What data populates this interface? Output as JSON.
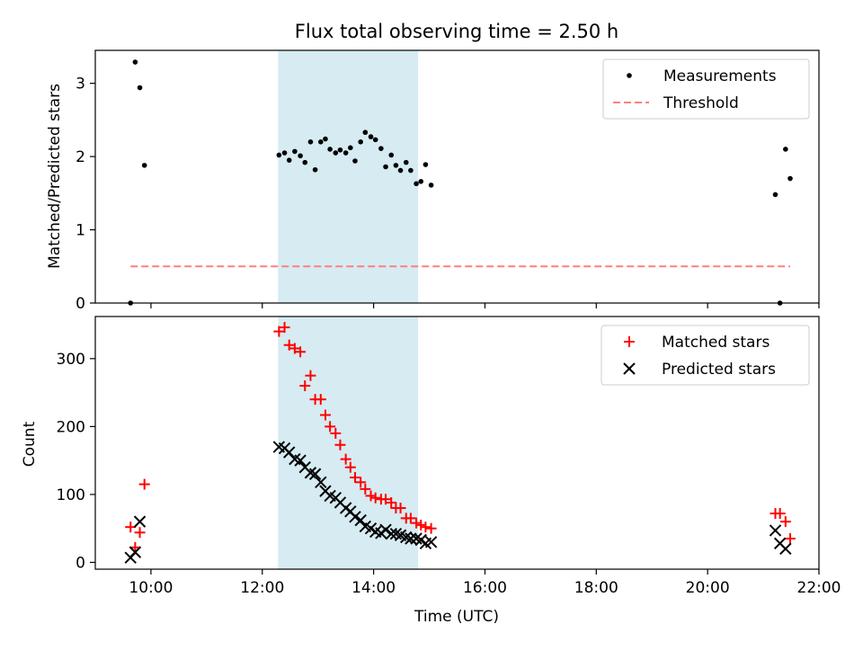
{
  "chart_data": [
    {
      "type": "scatter",
      "title": "Flux total observing time = 2.50 h",
      "xlabel": "",
      "ylabel": "Matched/Predicted stars",
      "xlim": [
        "09:00",
        "22:00"
      ],
      "ylim": [
        0,
        3.45
      ],
      "yticks": [
        "0",
        "1",
        "2",
        "3"
      ],
      "shaded_span": [
        "12:17",
        "14:48"
      ],
      "legend": {
        "placement": "top-right",
        "entries": [
          "Measurements",
          "Threshold"
        ]
      },
      "series": [
        {
          "name": "Measurements",
          "marker": "dot",
          "color": "#000000",
          "points": [
            [
              "09:38",
              0.0
            ],
            [
              "09:43",
              3.29
            ],
            [
              "09:48",
              2.94
            ],
            [
              "09:53",
              1.88
            ],
            [
              "12:18",
              2.02
            ],
            [
              "12:24",
              2.05
            ],
            [
              "12:29",
              1.95
            ],
            [
              "12:35",
              2.07
            ],
            [
              "12:41",
              2.01
            ],
            [
              "12:46",
              1.92
            ],
            [
              "12:52",
              2.2
            ],
            [
              "12:57",
              1.82
            ],
            [
              "13:03",
              2.2
            ],
            [
              "13:08",
              2.24
            ],
            [
              "13:13",
              2.1
            ],
            [
              "13:19",
              2.05
            ],
            [
              "13:24",
              2.09
            ],
            [
              "13:30",
              2.05
            ],
            [
              "13:35",
              2.12
            ],
            [
              "13:40",
              1.94
            ],
            [
              "13:46",
              2.2
            ],
            [
              "13:51",
              2.33
            ],
            [
              "13:57",
              2.27
            ],
            [
              "14:02",
              2.23
            ],
            [
              "14:08",
              2.11
            ],
            [
              "14:13",
              1.86
            ],
            [
              "14:19",
              2.02
            ],
            [
              "14:24",
              1.88
            ],
            [
              "14:29",
              1.81
            ],
            [
              "14:35",
              1.92
            ],
            [
              "14:40",
              1.81
            ],
            [
              "14:46",
              1.63
            ],
            [
              "14:51",
              1.66
            ],
            [
              "14:56",
              1.89
            ],
            [
              "15:02",
              1.61
            ],
            [
              "21:13",
              1.48
            ],
            [
              "21:18",
              0.0
            ],
            [
              "21:24",
              2.1
            ],
            [
              "21:29",
              1.7
            ]
          ]
        },
        {
          "name": "Threshold",
          "style": "dashed",
          "color": "#ff7f7f",
          "points": [
            [
              "09:38",
              0.5
            ],
            [
              "21:29",
              0.5
            ]
          ]
        }
      ]
    },
    {
      "type": "scatter",
      "title": "",
      "xlabel": "Time (UTC)",
      "ylabel": "Count",
      "xlim": [
        "09:00",
        "22:00"
      ],
      "ylim": [
        -10,
        362
      ],
      "yticks": [
        "0",
        "100",
        "200",
        "300"
      ],
      "xticks": [
        "10:00",
        "12:00",
        "14:00",
        "16:00",
        "18:00",
        "20:00",
        "22:00"
      ],
      "shaded_span": [
        "12:17",
        "14:48"
      ],
      "legend": {
        "placement": "top-right",
        "entries": [
          "Matched stars",
          "Predicted stars"
        ]
      },
      "series": [
        {
          "name": "Matched stars",
          "marker": "plus",
          "color": "#ff0000",
          "points": [
            [
              "09:38",
              52
            ],
            [
              "09:43",
              22
            ],
            [
              "09:48",
              44
            ],
            [
              "09:53",
              115
            ],
            [
              "12:18",
              340
            ],
            [
              "12:24",
              346
            ],
            [
              "12:29",
              320
            ],
            [
              "12:35",
              315
            ],
            [
              "12:41",
              310
            ],
            [
              "12:46",
              260
            ],
            [
              "12:52",
              275
            ],
            [
              "12:57",
              240
            ],
            [
              "13:03",
              240
            ],
            [
              "13:08",
              217
            ],
            [
              "13:13",
              200
            ],
            [
              "13:19",
              190
            ],
            [
              "13:24",
              173
            ],
            [
              "13:30",
              152
            ],
            [
              "13:35",
              140
            ],
            [
              "13:40",
              125
            ],
            [
              "13:46",
              118
            ],
            [
              "13:51",
              108
            ],
            [
              "13:57",
              98
            ],
            [
              "14:02",
              95
            ],
            [
              "14:08",
              93
            ],
            [
              "14:13",
              93
            ],
            [
              "14:19",
              88
            ],
            [
              "14:24",
              80
            ],
            [
              "14:29",
              80
            ],
            [
              "14:35",
              65
            ],
            [
              "14:40",
              65
            ],
            [
              "14:46",
              58
            ],
            [
              "14:51",
              55
            ],
            [
              "14:56",
              52
            ],
            [
              "15:02",
              50
            ],
            [
              "21:13",
              72
            ],
            [
              "21:18",
              72
            ],
            [
              "21:24",
              60
            ],
            [
              "21:29",
              35
            ]
          ]
        },
        {
          "name": "Predicted stars",
          "marker": "x",
          "color": "#000000",
          "points": [
            [
              "09:38",
              7
            ],
            [
              "09:43",
              15
            ],
            [
              "09:48",
              60
            ],
            [
              "12:18",
              170
            ],
            [
              "12:24",
              168
            ],
            [
              "12:29",
              162
            ],
            [
              "12:35",
              152
            ],
            [
              "12:41",
              150
            ],
            [
              "12:46",
              140
            ],
            [
              "12:52",
              132
            ],
            [
              "12:57",
              130
            ],
            [
              "13:03",
              118
            ],
            [
              "13:08",
              105
            ],
            [
              "13:13",
              98
            ],
            [
              "13:19",
              95
            ],
            [
              "13:24",
              88
            ],
            [
              "13:30",
              80
            ],
            [
              "13:35",
              75
            ],
            [
              "13:40",
              67
            ],
            [
              "13:46",
              62
            ],
            [
              "13:51",
              53
            ],
            [
              "13:57",
              50
            ],
            [
              "14:02",
              45
            ],
            [
              "14:08",
              43
            ],
            [
              "14:13",
              48
            ],
            [
              "14:19",
              42
            ],
            [
              "14:24",
              42
            ],
            [
              "14:29",
              40
            ],
            [
              "14:35",
              37
            ],
            [
              "14:40",
              35
            ],
            [
              "14:46",
              35
            ],
            [
              "14:51",
              33
            ],
            [
              "14:56",
              28
            ],
            [
              "15:02",
              30
            ],
            [
              "21:13",
              47
            ],
            [
              "21:18",
              28
            ],
            [
              "21:24",
              20
            ]
          ]
        }
      ]
    }
  ]
}
